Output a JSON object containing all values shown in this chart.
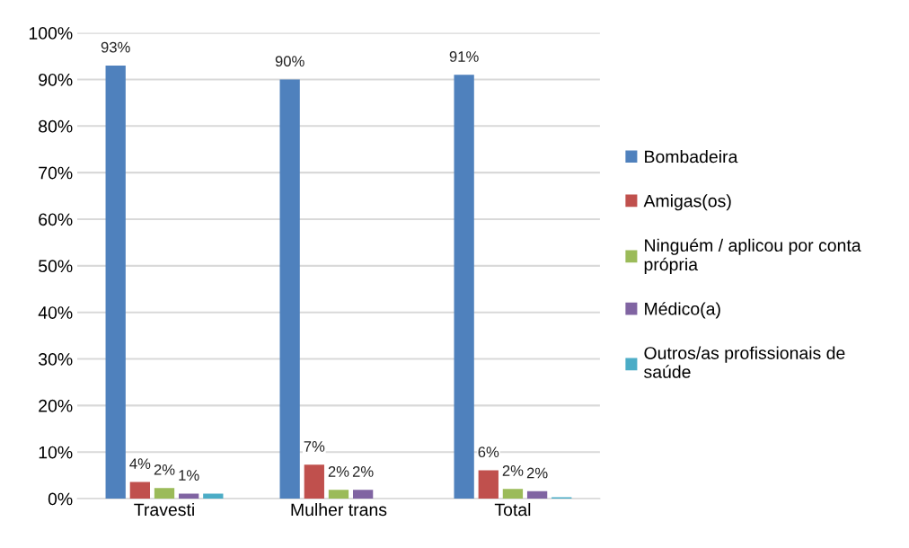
{
  "chart_data": {
    "type": "bar",
    "categories": [
      "Travesti",
      "Mulher trans",
      "Total"
    ],
    "series": [
      {
        "name": "Bombadeira",
        "color": "#4f81bd",
        "values": [
          93,
          90,
          91
        ],
        "value_labels": [
          "93%",
          "90%",
          "91%"
        ]
      },
      {
        "name": "Amigas(os)",
        "color": "#c0504d",
        "values": [
          3.6,
          7.3,
          6.1
        ],
        "value_labels": [
          "4%",
          "7%",
          "6%"
        ]
      },
      {
        "name": "Ninguém / aplicou por conta\nprópria",
        "color": "#9bbb59",
        "values": [
          2.3,
          1.9,
          2.1
        ],
        "value_labels": [
          "2%",
          "2%",
          "2%"
        ]
      },
      {
        "name": "Médico(a)",
        "color": "#8064a2",
        "values": [
          1.1,
          1.9,
          1.6
        ],
        "value_labels": [
          "1%",
          "2%",
          "2%"
        ]
      },
      {
        "name": "Outros/as profissionais de\nsaúde",
        "color": "#4bacc6",
        "values": [
          1.1,
          0,
          0.3
        ],
        "value_labels": [
          null,
          null,
          null
        ]
      }
    ],
    "ylim": [
      0,
      100
    ],
    "yticks": [
      {
        "value": 0,
        "label": "0%"
      },
      {
        "value": 10,
        "label": "10%"
      },
      {
        "value": 20,
        "label": "20%"
      },
      {
        "value": 30,
        "label": "30%"
      },
      {
        "value": 40,
        "label": "40%"
      },
      {
        "value": 50,
        "label": "50%"
      },
      {
        "value": 60,
        "label": "60%"
      },
      {
        "value": 70,
        "label": "70%"
      },
      {
        "value": 80,
        "label": "80%"
      },
      {
        "value": 90,
        "label": "90%"
      },
      {
        "value": 100,
        "label": "100%"
      }
    ],
    "grid": "y",
    "legend": "right"
  }
}
